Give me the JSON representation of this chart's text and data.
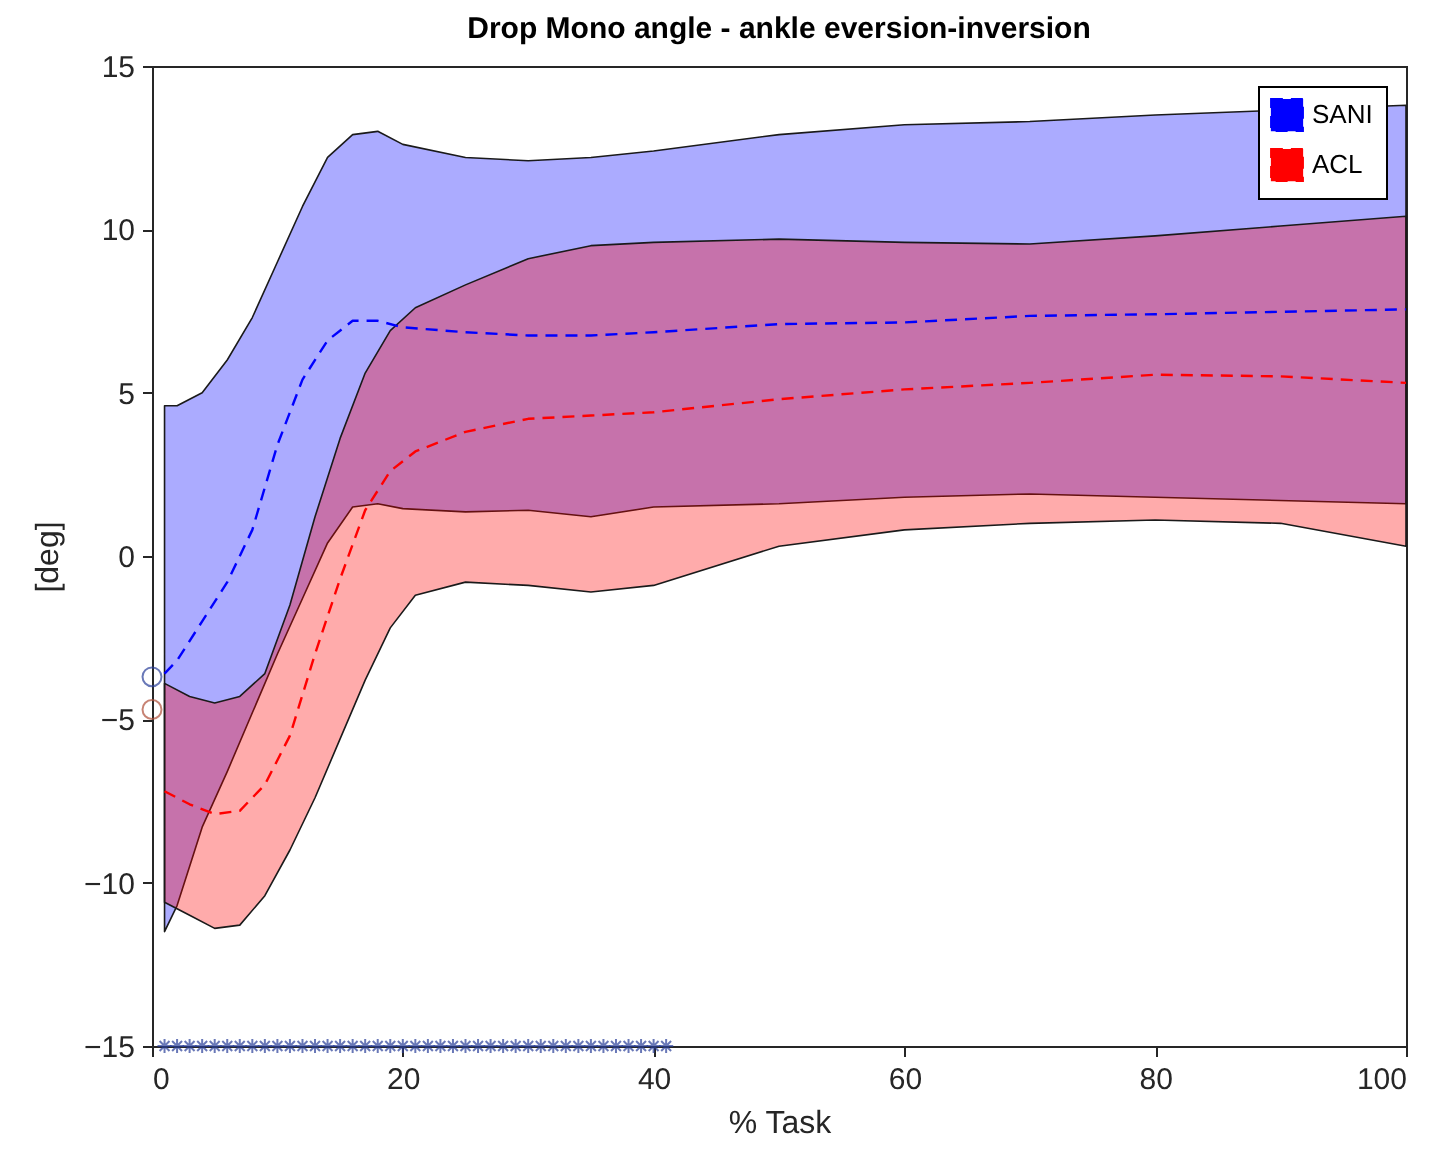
{
  "chart_data": {
    "type": "line",
    "title": "Drop Mono angle - ankle eversion-inversion",
    "xlabel": "% Task",
    "ylabel": "[deg]",
    "xlim": [
      0,
      100
    ],
    "ylim": [
      -15,
      15
    ],
    "xticks": [
      0,
      20,
      40,
      60,
      80,
      100
    ],
    "yticks": [
      -15,
      -10,
      -5,
      0,
      5,
      10,
      15
    ],
    "grid": false,
    "legend": "top right",
    "series": [
      {
        "name": "SANI",
        "color": "#0000ff",
        "line_style": "dashed",
        "x": [
          1,
          2,
          4,
          6,
          8,
          10,
          12,
          14,
          16,
          18,
          20,
          25,
          30,
          35,
          40,
          50,
          60,
          70,
          80,
          100
        ],
        "values": [
          -3.6,
          -3.2,
          -2,
          -0.8,
          0.8,
          3.4,
          5.4,
          6.6,
          7.2,
          7.2,
          7.0,
          6.85,
          6.75,
          6.75,
          6.85,
          7.1,
          7.15,
          7.35,
          7.4,
          7.55
        ],
        "lower": [
          -11.5,
          -10.7,
          -8.3,
          -6.6,
          -4.8,
          -3.0,
          -1.3,
          0.4,
          1.5,
          1.6,
          1.45,
          1.35,
          1.4,
          1.2,
          1.5,
          1.6,
          1.8,
          1.9,
          1.8,
          1.6
        ],
        "upper": [
          4.6,
          4.6,
          5.0,
          6.0,
          7.3,
          9.0,
          10.7,
          12.2,
          12.9,
          13.0,
          12.6,
          12.2,
          12.1,
          12.2,
          12.4,
          12.9,
          13.2,
          13.3,
          13.5,
          13.8
        ]
      },
      {
        "name": "ACL",
        "color": "#ff0000",
        "line_style": "dashed",
        "x": [
          1,
          3,
          5,
          7,
          9,
          11,
          13,
          15,
          17,
          19,
          21,
          25,
          30,
          35,
          40,
          50,
          60,
          70,
          80,
          90,
          100
        ],
        "values": [
          -7.2,
          -7.6,
          -7.9,
          -7.8,
          -7.0,
          -5.5,
          -3.0,
          -0.7,
          1.4,
          2.6,
          3.2,
          3.8,
          4.2,
          4.3,
          4.4,
          4.8,
          5.1,
          5.3,
          5.55,
          5.5,
          5.3
        ],
        "lower": [
          -10.6,
          -11.0,
          -11.4,
          -11.3,
          -10.4,
          -9.0,
          -7.4,
          -5.6,
          -3.8,
          -2.2,
          -1.2,
          -0.8,
          -0.9,
          -1.1,
          -0.9,
          0.3,
          0.8,
          1.0,
          1.1,
          1.0,
          0.3
        ],
        "upper": [
          -3.9,
          -4.3,
          -4.5,
          -4.3,
          -3.6,
          -1.5,
          1.2,
          3.6,
          5.6,
          6.9,
          7.6,
          8.3,
          9.1,
          9.5,
          9.6,
          9.7,
          9.6,
          9.55,
          9.8,
          10.1,
          10.4
        ]
      },
      {
        "type": "scatter",
        "color": "#2a3f9a",
        "marker": "circle",
        "x": [
          0
        ],
        "values": [
          -3.7
        ]
      },
      {
        "type": "scatter",
        "color": "#b0503a",
        "marker": "circle",
        "x": [
          0
        ],
        "values": [
          -4.7
        ]
      },
      {
        "type": "scatter",
        "color": "#2a3f9a",
        "marker": "cross",
        "x": [
          1,
          2,
          3,
          4,
          5,
          6,
          7,
          8,
          9,
          10,
          11,
          12,
          13,
          14,
          15,
          16,
          17,
          18,
          19,
          20,
          21,
          22,
          23,
          24,
          25,
          26,
          27,
          28,
          29,
          30,
          31,
          32,
          33,
          34,
          35,
          36,
          37,
          38,
          39,
          40,
          41
        ],
        "values": [
          -15,
          -15,
          -15,
          -15,
          -15,
          -15,
          -15,
          -15,
          -15,
          -15,
          -15,
          -15,
          -15,
          -15,
          -15,
          -15,
          -15,
          -15,
          -15,
          -15,
          -15,
          -15,
          -15,
          -15,
          -15,
          -15,
          -15,
          -15,
          -15,
          -15,
          -15,
          -15,
          -15,
          -15,
          -15,
          -15,
          -15,
          -15,
          -15,
          -15,
          -15
        ]
      }
    ]
  }
}
